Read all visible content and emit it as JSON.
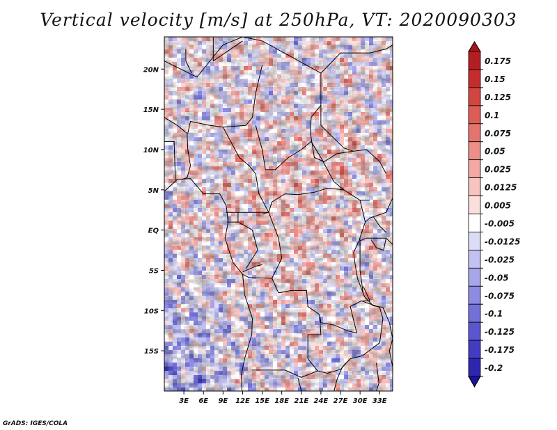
{
  "title": "Vertical velocity [m/s] at 250hPa, VT: 2020090303",
  "credit": "GrADS: IGES/COLA",
  "map": {
    "lon_range": [
      0,
      35
    ],
    "lat_range": [
      -20,
      24
    ],
    "lat_ticks": [
      {
        "lat": 20,
        "label": "20N"
      },
      {
        "lat": 15,
        "label": "15N"
      },
      {
        "lat": 10,
        "label": "10N"
      },
      {
        "lat": 5,
        "label": "5N"
      },
      {
        "lat": 0,
        "label": "EQ"
      },
      {
        "lat": -5,
        "label": "5S"
      },
      {
        "lat": -10,
        "label": "10S"
      },
      {
        "lat": -15,
        "label": "15S"
      }
    ],
    "lon_ticks": [
      {
        "lon": 3,
        "label": "3E"
      },
      {
        "lon": 6,
        "label": "6E"
      },
      {
        "lon": 9,
        "label": "9E"
      },
      {
        "lon": 12,
        "label": "12E"
      },
      {
        "lon": 15,
        "label": "15E"
      },
      {
        "lon": 18,
        "label": "18E"
      },
      {
        "lon": 21,
        "label": "21E"
      },
      {
        "lon": 24,
        "label": "24E"
      },
      {
        "lon": 27,
        "label": "27E"
      },
      {
        "lon": 30,
        "label": "30E"
      },
      {
        "lon": 33,
        "label": "33E"
      }
    ]
  },
  "colorbar": {
    "levels": [
      {
        "label": "0.175",
        "color": "#b41e22"
      },
      {
        "label": "0.15",
        "color": "#c42d2b"
      },
      {
        "label": "0.125",
        "color": "#d2463f"
      },
      {
        "label": "0.1",
        "color": "#dc5d56"
      },
      {
        "label": "0.075",
        "color": "#e4746e"
      },
      {
        "label": "0.05",
        "color": "#ec8e89"
      },
      {
        "label": "0.025",
        "color": "#f2a8a4"
      },
      {
        "label": "0.0125",
        "color": "#f7c4c1"
      },
      {
        "label": "0.005",
        "color": "#fbdfdd"
      },
      {
        "label": "-0.005",
        "color": "#ffffff"
      },
      {
        "label": "-0.0125",
        "color": "#dcdcf6"
      },
      {
        "label": "-0.025",
        "color": "#c2c2f0"
      },
      {
        "label": "-0.05",
        "color": "#a7a6ea"
      },
      {
        "label": "-0.075",
        "color": "#8d8be2"
      },
      {
        "label": "-0.1",
        "color": "#7370d9"
      },
      {
        "label": "-0.125",
        "color": "#5b56cf"
      },
      {
        "label": "-0.175",
        "color": "#423cc3"
      },
      {
        "label": "-0.2",
        "color": "#2d26b0"
      }
    ],
    "top_color": "#a8141c",
    "bottom_color": "#1a139e"
  }
}
